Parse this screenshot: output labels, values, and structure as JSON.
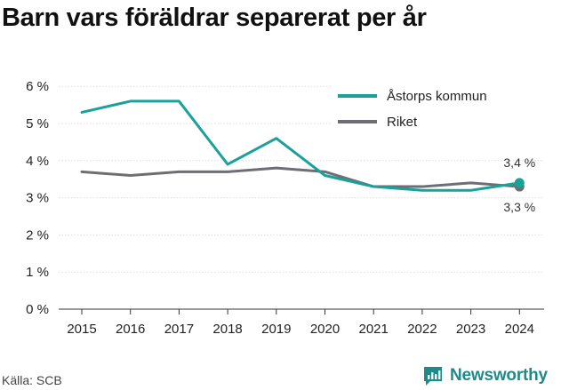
{
  "title": "Barn vars föräldrar separerat per år",
  "source": "Källa: SCB",
  "brand": {
    "name": "Newsworthy",
    "icon": "newsworthy-logo-icon"
  },
  "colors": {
    "municipality": "#1aa19a",
    "national": "#6e6e74",
    "grid": "#dddddd",
    "brand": "#1e8a8a"
  },
  "chart_data": {
    "type": "line",
    "title": "Barn vars föräldrar separerat per år",
    "xlabel": "",
    "ylabel": "",
    "categories": [
      "2015",
      "2016",
      "2017",
      "2018",
      "2019",
      "2020",
      "2021",
      "2022",
      "2023",
      "2024"
    ],
    "ylim": [
      0,
      6
    ],
    "yticks": [
      0,
      1,
      2,
      3,
      4,
      5,
      6
    ],
    "ytick_labels": [
      "0 %",
      "1 %",
      "2 %",
      "3 %",
      "4 %",
      "5 %",
      "6 %"
    ],
    "grid": "horizontal",
    "legend": "top-right",
    "series": [
      {
        "name": "Åstorps kommun",
        "values": [
          5.3,
          5.6,
          5.6,
          3.9,
          4.6,
          3.6,
          3.3,
          3.2,
          3.2,
          3.4
        ],
        "end_label": "3,4 %"
      },
      {
        "name": "Riket",
        "values": [
          3.7,
          3.6,
          3.7,
          3.7,
          3.8,
          3.7,
          3.3,
          3.3,
          3.4,
          3.3
        ],
        "end_label": "3,3 %"
      }
    ]
  }
}
